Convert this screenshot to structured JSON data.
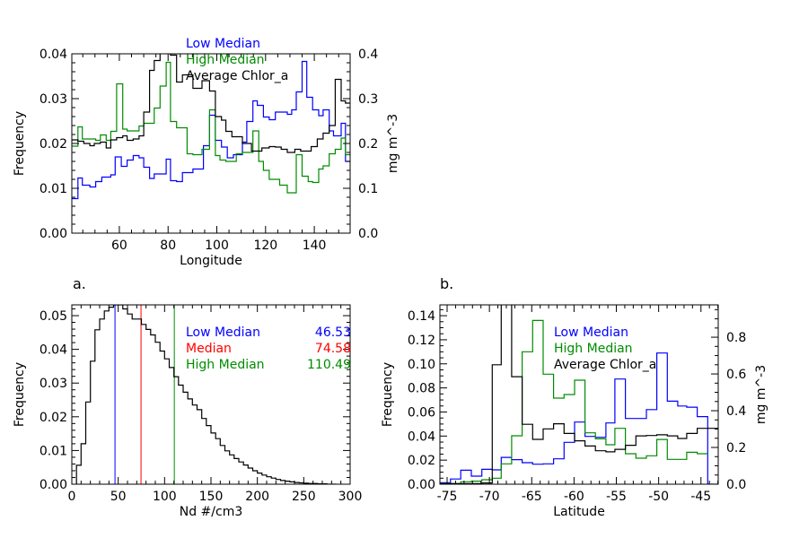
{
  "colors": {
    "low": "#0000ff",
    "median": "#ff0000",
    "high": "#008c00",
    "avg": "#000000",
    "axis": "#000000"
  },
  "chart_data": [
    {
      "id": "top",
      "type": "line",
      "step": true,
      "panel_label": "",
      "xlabel": "Longitude",
      "ylabel": "Frequency",
      "y2label": "mg m^-3",
      "xlim": [
        40.5,
        154.7
      ],
      "ylim": [
        0,
        0.04
      ],
      "y2lim": [
        0,
        0.4
      ],
      "xticks": [
        60,
        80,
        100,
        120,
        140
      ],
      "xtick_labels": [
        "60",
        "80",
        "100",
        "120",
        "140"
      ],
      "xminor": 5,
      "yticks": [
        0,
        0.01,
        0.02,
        0.03,
        0.04
      ],
      "ytick_labels": [
        "0.00",
        "0.01",
        "0.02",
        "0.03",
        "0.04"
      ],
      "yminor": 0.002,
      "y2ticks": [
        0,
        0.1,
        0.2,
        0.3,
        0.4
      ],
      "y2tick_labels": [
        "0.0",
        "0.1",
        "0.2",
        "0.3",
        "0.4"
      ],
      "y2minor": 0.02,
      "legend": [
        {
          "text": "Low Median",
          "color": "#0000ff"
        },
        {
          "text": "High Median",
          "color": "#008c00"
        },
        {
          "text": "Average Chlor_a",
          "color": "#000000"
        }
      ],
      "series": [
        {
          "name": "Low Median",
          "color": "#0000ff",
          "axis": "left",
          "edges": [
            40.5,
            43.0,
            44.8,
            47.9,
            50.3,
            52.8,
            56.5,
            58.3,
            60.8,
            63.2,
            65.7,
            68.1,
            70.0,
            72.4,
            74.3,
            79.2,
            81.0,
            83.5,
            85.9,
            90.2,
            94.5,
            97.0,
            99.4,
            101.9,
            104.3,
            106.8,
            110.5,
            112.3,
            114.8,
            116.6,
            119.1,
            121.5,
            124.0,
            128.9,
            130.7,
            132.6,
            135.0,
            136.9,
            139.3,
            141.8,
            143.6,
            146.1,
            147.9,
            151.0,
            152.8,
            154.7
          ],
          "values": [
            0.0077,
            0.0123,
            0.0107,
            0.0103,
            0.0115,
            0.0125,
            0.013,
            0.017,
            0.0149,
            0.0163,
            0.0173,
            0.0168,
            0.0147,
            0.0122,
            0.0132,
            0.0165,
            0.0117,
            0.0115,
            0.0135,
            0.0143,
            0.0195,
            0.0263,
            0.0207,
            0.0192,
            0.0168,
            0.0175,
            0.0203,
            0.0249,
            0.0295,
            0.0285,
            0.0259,
            0.0253,
            0.027,
            0.0265,
            0.0275,
            0.0315,
            0.0383,
            0.0303,
            0.0275,
            0.0262,
            0.0275,
            0.0228,
            0.0217,
            0.0245,
            0.016
          ]
        },
        {
          "name": "High Median",
          "color": "#008c00",
          "axis": "left",
          "edges": [
            40.5,
            43.0,
            44.8,
            50.3,
            52.2,
            54.6,
            56.5,
            58.9,
            61.4,
            63.2,
            68.1,
            70.0,
            74.3,
            76.7,
            79.2,
            81.0,
            83.5,
            87.8,
            90.2,
            93.9,
            97.0,
            99.4,
            101.3,
            103.7,
            108.0,
            110.5,
            114.8,
            117.2,
            119.1,
            121.5,
            125.8,
            128.9,
            132.6,
            135.0,
            137.5,
            139.3,
            141.8,
            143.6,
            146.1,
            148.6,
            151.0,
            152.8,
            154.7
          ],
          "values": [
            0.0194,
            0.0237,
            0.021,
            0.0207,
            0.0219,
            0.0207,
            0.0227,
            0.0333,
            0.0232,
            0.0228,
            0.0239,
            0.0245,
            0.0279,
            0.0328,
            0.0381,
            0.0249,
            0.0235,
            0.0177,
            0.0175,
            0.0187,
            0.0275,
            0.0173,
            0.0163,
            0.016,
            0.0177,
            0.018,
            0.0228,
            0.016,
            0.014,
            0.012,
            0.0107,
            0.009,
            0.0175,
            0.0127,
            0.0115,
            0.0113,
            0.0143,
            0.015,
            0.0177,
            0.0187,
            0.0212,
            0.0175
          ]
        },
        {
          "name": "Average Chlor_a",
          "color": "#000000",
          "axis": "right",
          "edges": [
            40.5,
            43.0,
            45.4,
            47.9,
            49.7,
            52.2,
            54.6,
            56.5,
            58.9,
            61.4,
            63.2,
            65.7,
            68.1,
            70.0,
            72.4,
            74.3,
            76.7,
            79.2,
            81.0,
            83.5,
            85.9,
            90.2,
            93.9,
            97.0,
            99.4,
            101.9,
            103.7,
            106.2,
            110.5,
            114.2,
            118.5,
            121.5,
            124.0,
            126.4,
            128.9,
            132.0,
            134.4,
            138.7,
            141.2,
            143.6,
            146.1,
            148.6,
            151.0,
            152.8,
            154.7
          ],
          "values": [
            0.208,
            0.205,
            0.2,
            0.195,
            0.2,
            0.203,
            0.19,
            0.208,
            0.213,
            0.217,
            0.207,
            0.21,
            0.217,
            0.27,
            0.363,
            0.385,
            0.41,
            0.41,
            0.397,
            0.337,
            0.353,
            0.323,
            0.34,
            0.317,
            0.26,
            0.252,
            0.227,
            0.215,
            0.2,
            0.183,
            0.19,
            0.193,
            0.192,
            0.187,
            0.18,
            0.187,
            0.183,
            0.193,
            0.21,
            0.223,
            0.24,
            0.343,
            0.295,
            0.29
          ]
        }
      ]
    },
    {
      "id": "a",
      "type": "bar",
      "step": true,
      "panel_label": "a.",
      "xlabel": "Nd #/cm3",
      "ylabel": "Frequency",
      "xlim": [
        0,
        300
      ],
      "ylim": [
        0,
        0.0532
      ],
      "xticks": [
        0,
        50,
        100,
        150,
        200,
        250,
        300
      ],
      "xtick_labels": [
        "0",
        "50",
        "100",
        "150",
        "200",
        "250",
        "300"
      ],
      "xminor": 10,
      "yticks": [
        0,
        0.01,
        0.02,
        0.03,
        0.04,
        0.05
      ],
      "ytick_labels": [
        "0.00",
        "0.01",
        "0.02",
        "0.03",
        "0.04",
        "0.05"
      ],
      "yminor": 0.002,
      "legend": [
        {
          "text": "Low Median",
          "value": "46.53",
          "color": "#0000ff"
        },
        {
          "text": "Median",
          "value": "74.58",
          "color": "#ff0000"
        },
        {
          "text": "High Median",
          "value": "110.49",
          "color": "#008c00"
        }
      ],
      "vlines": [
        {
          "name": "Low Median",
          "x": 46.53,
          "color": "#0000ff"
        },
        {
          "name": "Median",
          "x": 74.58,
          "color": "#ff0000"
        },
        {
          "name": "High Median",
          "x": 110.49,
          "color": "#008c00"
        }
      ],
      "series": [
        {
          "name": "Nd histogram",
          "color": "#000000",
          "axis": "left",
          "bin_start": 5,
          "bin_width": 5,
          "values": [
            0.0056,
            0.012,
            0.0244,
            0.0365,
            0.0458,
            0.049,
            0.0514,
            0.0525,
            0.0532,
            0.0532,
            0.052,
            0.0505,
            0.049,
            0.049,
            0.0474,
            0.0459,
            0.0443,
            0.0421,
            0.0395,
            0.0372,
            0.0346,
            0.0319,
            0.0294,
            0.0273,
            0.0253,
            0.0235,
            0.0221,
            0.0195,
            0.0174,
            0.0152,
            0.0135,
            0.0115,
            0.0099,
            0.0087,
            0.0076,
            0.0066,
            0.0057,
            0.0048,
            0.004,
            0.0033,
            0.0027,
            0.0022,
            0.0018,
            0.0014,
            0.0011,
            0.0009,
            0.0007,
            0.0005,
            0.0004,
            0.0003,
            0.0002,
            0.0002,
            0.0001,
            0.0001,
            0.0,
            0.0
          ]
        }
      ]
    },
    {
      "id": "b",
      "type": "line",
      "step": true,
      "panel_label": "b.",
      "xlabel": "Latitude",
      "ylabel": "Frequency",
      "y2label": "mg m^-3",
      "xlim": [
        -75.85,
        -42.96
      ],
      "ylim": [
        0,
        0.149
      ],
      "y2lim": [
        0,
        0.976
      ],
      "xticks": [
        -75,
        -70,
        -65,
        -60,
        -55,
        -50,
        -45
      ],
      "xtick_labels": [
        "-75",
        "-70",
        "-65",
        "-60",
        "-55",
        "-50",
        "-45"
      ],
      "xminor": 1,
      "yticks": [
        0,
        0.02,
        0.04,
        0.06,
        0.08,
        0.1,
        0.12,
        0.14
      ],
      "ytick_labels": [
        "0.00",
        "0.02",
        "0.04",
        "0.06",
        "0.08",
        "0.10",
        "0.12",
        "0.14"
      ],
      "yminor": 0.005,
      "y2ticks": [
        0,
        0.2,
        0.4,
        0.6,
        0.8
      ],
      "y2tick_labels": [
        "0.0",
        "0.2",
        "0.4",
        "0.6",
        "0.8"
      ],
      "y2minor": 0.05,
      "legend": [
        {
          "text": "Low Median",
          "color": "#0000ff"
        },
        {
          "text": "High Median",
          "color": "#008c00"
        },
        {
          "text": "Average Chlor_a",
          "color": "#000000"
        }
      ],
      "series": [
        {
          "name": "Low Median",
          "color": "#0000ff",
          "axis": "left",
          "edges": [
            -75.85,
            -74.6,
            -73.39,
            -72.14,
            -70.9,
            -69.66,
            -68.6,
            -67.37,
            -66.13,
            -64.89,
            -63.65,
            -62.42,
            -61.18,
            -59.94,
            -58.7,
            -57.47,
            -56.23,
            -55.17,
            -53.93,
            -52.69,
            -51.45,
            -50.22,
            -48.98,
            -47.74,
            -46.68,
            -45.44,
            -44.2,
            -42.96
          ],
          "values": [
            0.0013,
            0.0043,
            0.0116,
            0.0067,
            0.0124,
            0.0119,
            0.0223,
            0.0204,
            0.0179,
            0.0166,
            0.0169,
            0.0211,
            0.0348,
            0.0516,
            0.0397,
            0.039,
            0.0509,
            0.0874,
            0.0546,
            0.0546,
            0.062,
            0.109,
            0.069,
            0.065,
            0.064,
            0.0562,
            0
          ]
        },
        {
          "name": "High Median",
          "color": "#008c00",
          "axis": "left",
          "edges": [
            -75.85,
            -74.6,
            -73.39,
            -72.14,
            -70.9,
            -69.66,
            -68.6,
            -67.37,
            -66.13,
            -64.89,
            -63.65,
            -62.42,
            -61.18,
            -59.94,
            -58.7,
            -57.47,
            -56.23,
            -55.17,
            -53.93,
            -52.69,
            -51.45,
            -50.22,
            -48.98,
            -47.74,
            -46.68,
            -45.44,
            -44.2,
            -42.96
          ],
          "values": [
            0.0005,
            0.0005,
            0.002,
            0.0025,
            0.0037,
            0.005,
            0.0169,
            0.0402,
            0.11,
            0.136,
            0.0914,
            0.0715,
            0.0745,
            0.0864,
            0.0427,
            0.0377,
            0.0328,
            0.0464,
            0.0253,
            0.0216,
            0.0236,
            0.0372,
            0.0206,
            0.0206,
            0.0265,
            0.0253,
            null
          ]
        },
        {
          "name": "Average Chlor_a",
          "color": "#000000",
          "axis": "right",
          "edges": [
            -75.85,
            -74.6,
            -73.39,
            -72.14,
            -70.9,
            -69.66,
            -68.6,
            -67.37,
            -66.13,
            -64.89,
            -63.65,
            -62.42,
            -61.18,
            -59.94,
            -58.7,
            -57.47,
            -56.23,
            -55.17,
            -53.93,
            -52.69,
            -51.45,
            -50.22,
            -48.98,
            -47.74,
            -46.68,
            -45.44,
            -44.2,
            -42.96
          ],
          "values": [
            0.003,
            0.003,
            0.003,
            0.003,
            0.007,
            0.65,
            1.2,
            0.585,
            0.326,
            0.244,
            0.301,
            0.329,
            0.276,
            0.236,
            0.208,
            0.182,
            0.176,
            0.19,
            0.212,
            0.263,
            0.265,
            0.269,
            0.263,
            0.249,
            0.276,
            0.304,
            0.304
          ]
        }
      ]
    }
  ]
}
